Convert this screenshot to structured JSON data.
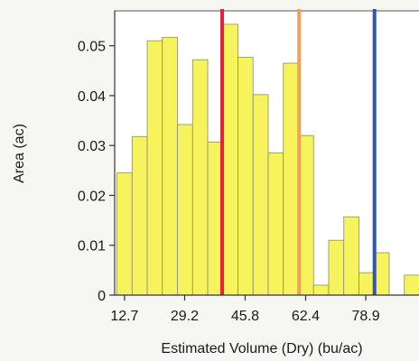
{
  "chart_data": {
    "type": "bar",
    "title": "",
    "xlabel": "Estimated Volume (Dry) (bu/ac)",
    "ylabel": "Area (ac)",
    "ylim": [
      0,
      0.057
    ],
    "xlim": [
      10,
      95
    ],
    "bin_width": 4.15,
    "bins_start": 10.63,
    "values": [
      0.0245,
      0.0318,
      0.051,
      0.0517,
      0.0342,
      0.0472,
      0.0307,
      0.0543,
      0.0477,
      0.0402,
      0.0285,
      0.0465,
      0.032,
      0.002,
      0.011,
      0.0157,
      0.0045,
      0.0085,
      0.0,
      0.004
    ],
    "x_ticks": [
      12.7,
      29.2,
      45.8,
      62.4,
      78.9
    ],
    "x_tick_labels": [
      "12.7",
      "29.2",
      "45.8",
      "62.4",
      "78.9"
    ],
    "y_ticks": [
      0,
      0.01,
      0.02,
      0.03,
      0.04,
      0.05
    ],
    "y_tick_labels": [
      "0",
      "0.01",
      "0.02",
      "0.03",
      "0.04",
      "0.05"
    ],
    "reference_lines": [
      {
        "x": 39.5,
        "color": "#e8203c"
      },
      {
        "x": 60.6,
        "color": "#f2a05a"
      },
      {
        "x": 81.3,
        "color": "#2f55b8"
      }
    ],
    "bar_color": "#f7f35c",
    "grid": false,
    "legend": "none"
  }
}
